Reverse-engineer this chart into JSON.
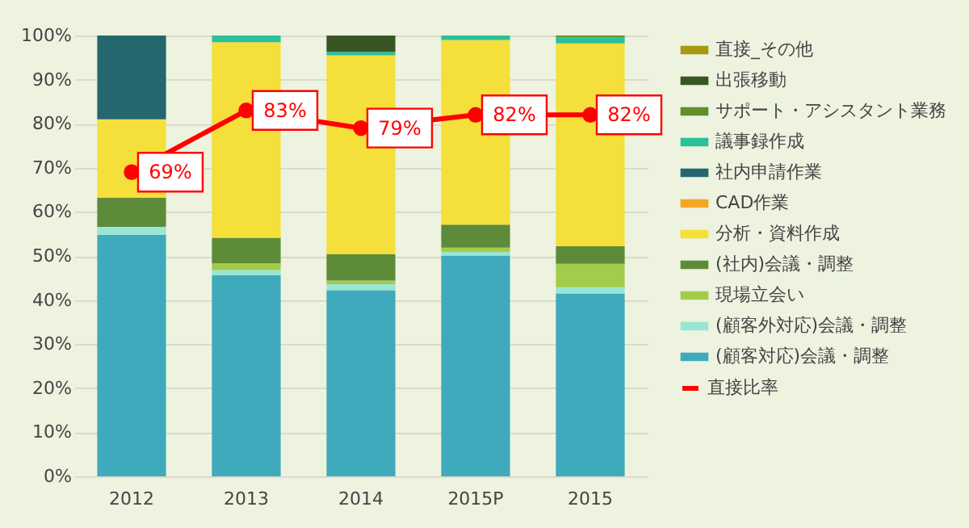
{
  "chart_data": {
    "type": "bar",
    "stacked": true,
    "categories": [
      "2012",
      "2013",
      "2014",
      "2015P",
      "2015"
    ],
    "series": [
      {
        "name": "(顧客対応)会議・調整",
        "color": "#3faabb",
        "values": [
          54.8,
          45.6,
          42.2,
          50.1,
          41.5
        ]
      },
      {
        "name": "(顧客外対応)会議・調整",
        "color": "#98e6d4",
        "values": [
          1.8,
          1.2,
          1.4,
          0.8,
          1.4
        ]
      },
      {
        "name": "現場立会い",
        "color": "#a3cc4a",
        "values": [
          0,
          1.5,
          0.8,
          1.0,
          5.3
        ]
      },
      {
        "name": "(社内)会議・調整",
        "color": "#5e8b3a",
        "values": [
          6.6,
          5.8,
          6.0,
          5.2,
          4.0
        ]
      },
      {
        "name": "分析・資料作成",
        "color": "#f5df3a",
        "values": [
          17.8,
          44.4,
          45.1,
          41.9,
          46.0
        ]
      },
      {
        "name": "CAD作業",
        "color": "#f5a623",
        "values": [
          0,
          0,
          0,
          0,
          0
        ]
      },
      {
        "name": "社内申請作業",
        "color": "#24676e",
        "values": [
          19.0,
          0,
          0,
          0,
          0
        ]
      },
      {
        "name": "議事録作成",
        "color": "#2bbf9a",
        "values": [
          0,
          1.5,
          0.8,
          1.0,
          1.4
        ]
      },
      {
        "name": "サポート・アシスタント業務",
        "color": "#638c2a",
        "values": [
          0,
          0,
          0,
          0,
          0.4
        ]
      },
      {
        "name": "出張移動",
        "color": "#375623",
        "values": [
          0,
          0,
          3.7,
          0,
          0
        ]
      },
      {
        "name": "直接_その他",
        "color": "#a89a10",
        "values": [
          0,
          0,
          0,
          0,
          0
        ]
      },
      {
        "name": "直接比率",
        "type": "line",
        "color": "#ff0000",
        "values": [
          69,
          83,
          79,
          82,
          82
        ],
        "value_labels": [
          "69%",
          "83%",
          "79%",
          "82%",
          "82%"
        ]
      }
    ],
    "ylim": [
      0,
      100
    ],
    "yticks": [
      {
        "value": 0,
        "label": "0%"
      },
      {
        "value": 10,
        "label": "10%"
      },
      {
        "value": 20,
        "label": "20%"
      },
      {
        "value": 30,
        "label": "30%"
      },
      {
        "value": 40,
        "label": "40%"
      },
      {
        "value": 50,
        "label": "50%"
      },
      {
        "value": 60,
        "label": "60%"
      },
      {
        "value": 70,
        "label": "70%"
      },
      {
        "value": 80,
        "label": "80%"
      },
      {
        "value": 90,
        "label": "90%"
      },
      {
        "value": 100,
        "label": "100%"
      }
    ],
    "grid": "y",
    "legend": "right",
    "marker": "circle"
  }
}
